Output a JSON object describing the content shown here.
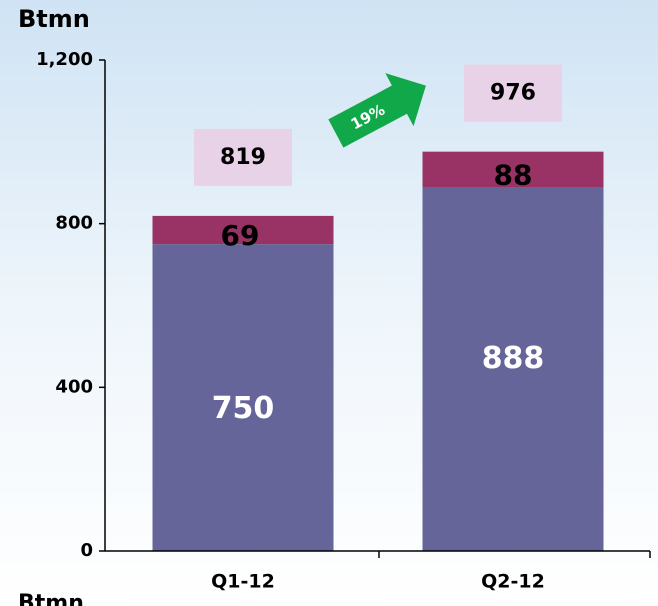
{
  "chart_data": {
    "type": "stacked_bar",
    "y_label": "Btmn",
    "bottom_label": "Btmn",
    "categories": [
      "Q1-12",
      "Q2-12"
    ],
    "series": [
      {
        "color": "#656599",
        "values": [
          750,
          888
        ]
      },
      {
        "color": "#993366",
        "values": [
          69,
          88
        ]
      }
    ],
    "totals": [
      819,
      976
    ],
    "annotation": "19%",
    "ylim": [
      0,
      1200
    ],
    "yticks": [
      0,
      400,
      800,
      {
        "value": 1200,
        "label": "1,200"
      }
    ]
  }
}
